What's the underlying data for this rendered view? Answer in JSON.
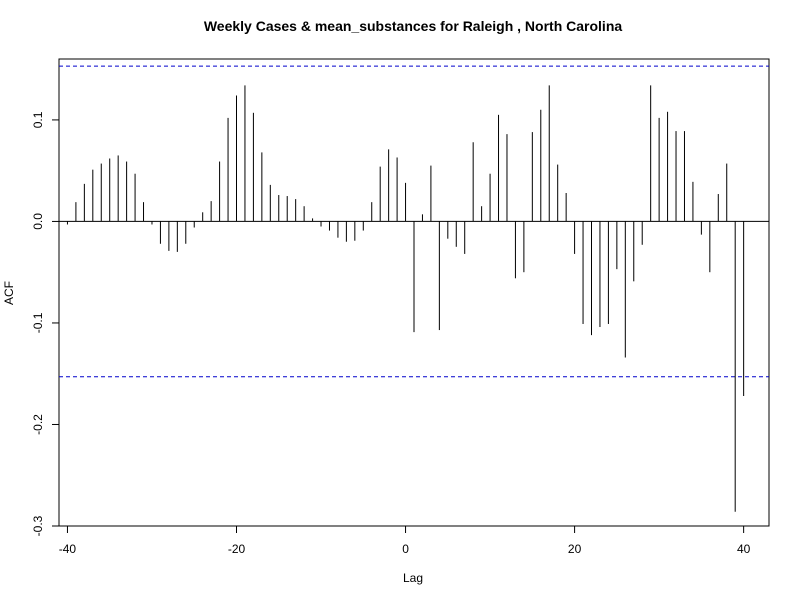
{
  "chart_data": {
    "type": "bar",
    "title": "Weekly Cases & mean_substances for Raleigh , North Carolina",
    "xlabel": "Lag",
    "ylabel": "ACF",
    "xlim": [
      -41,
      43
    ],
    "ylim": [
      -0.3,
      0.16
    ],
    "x_ticks": [
      -40,
      -20,
      0,
      20,
      40
    ],
    "x_tick_labels": [
      "-40",
      "-20",
      "0",
      "20",
      "40"
    ],
    "y_ticks": [
      -0.3,
      -0.2,
      -0.1,
      0.0,
      0.1
    ],
    "y_tick_labels": [
      "-0.3",
      "-0.2",
      "-0.1",
      "0.0",
      "0.1"
    ],
    "confidence_band": 0.153,
    "confidence_color": "#0000cc",
    "bar_color": "#000000",
    "zero_line": true,
    "lags": [
      -40,
      -39,
      -38,
      -37,
      -36,
      -35,
      -34,
      -33,
      -32,
      -31,
      -30,
      -29,
      -28,
      -27,
      -26,
      -25,
      -24,
      -23,
      -22,
      -21,
      -20,
      -19,
      -18,
      -17,
      -16,
      -15,
      -14,
      -13,
      -12,
      -11,
      -10,
      -9,
      -8,
      -7,
      -6,
      -5,
      -4,
      -3,
      -2,
      -1,
      0,
      1,
      2,
      3,
      4,
      5,
      6,
      7,
      8,
      9,
      10,
      11,
      12,
      13,
      14,
      15,
      16,
      17,
      18,
      19,
      20,
      21,
      22,
      23,
      24,
      25,
      26,
      27,
      28,
      29,
      30,
      31,
      32,
      33,
      34,
      35,
      36,
      37,
      38,
      39,
      40
    ],
    "values": [
      -0.003,
      0.019,
      0.037,
      0.051,
      0.057,
      0.062,
      0.065,
      0.059,
      0.047,
      0.019,
      -0.003,
      -0.022,
      -0.029,
      -0.03,
      -0.022,
      -0.006,
      0.009,
      0.02,
      0.059,
      0.102,
      0.124,
      0.134,
      0.107,
      0.068,
      0.036,
      0.026,
      0.025,
      0.022,
      0.015,
      0.003,
      -0.005,
      -0.009,
      -0.016,
      -0.02,
      -0.019,
      -0.009,
      0.019,
      0.054,
      0.071,
      0.063,
      0.038,
      -0.109,
      0.007,
      0.055,
      -0.107,
      -0.017,
      -0.025,
      -0.032,
      0.078,
      0.015,
      0.047,
      0.105,
      0.086,
      -0.056,
      -0.05,
      0.088,
      0.11,
      0.134,
      0.056,
      0.028,
      -0.032,
      -0.101,
      -0.112,
      -0.104,
      -0.101,
      -0.047,
      -0.134,
      -0.059,
      -0.023,
      0.134,
      0.102,
      0.108,
      0.089,
      0.089,
      0.039,
      -0.013,
      -0.05,
      0.027,
      0.057,
      -0.286,
      -0.172
    ]
  }
}
